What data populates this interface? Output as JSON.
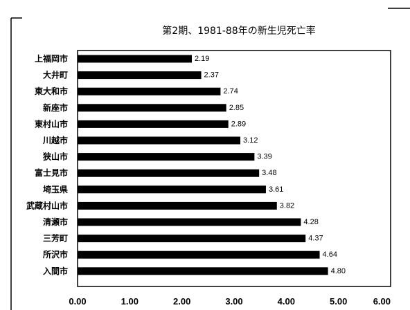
{
  "chart_data": {
    "type": "bar",
    "orientation": "horizontal",
    "title": "第2期、1981-88年の新生児死亡率",
    "categories": [
      "上福岡市",
      "大井町",
      "東大和市",
      "新座市",
      "東村山市",
      "川越市",
      "狭山市",
      "富士見市",
      "埼玉県",
      "武蔵村山市",
      "清瀬市",
      "三芳町",
      "所沢市",
      "入間市"
    ],
    "values": [
      2.19,
      2.37,
      2.74,
      2.85,
      2.89,
      3.12,
      3.39,
      3.48,
      3.61,
      3.82,
      4.28,
      4.37,
      4.64,
      4.8
    ],
    "value_labels": [
      "2.19",
      "2.37",
      "2.74",
      "2.85",
      "2.89",
      "3.12",
      "3.39",
      "3.48",
      "3.61",
      "3.82",
      "4.28",
      "4.37",
      "4.64",
      "4.80"
    ],
    "xticks": [
      "0.00",
      "1.00",
      "2.00",
      "3.00",
      "4.00",
      "5.00",
      "6.00"
    ],
    "xlim": [
      0,
      6
    ],
    "xlabel": "",
    "ylabel": "",
    "grid": false,
    "colors": {
      "bar": "#000000",
      "frame": "#000000",
      "background": "#ffffff"
    }
  }
}
